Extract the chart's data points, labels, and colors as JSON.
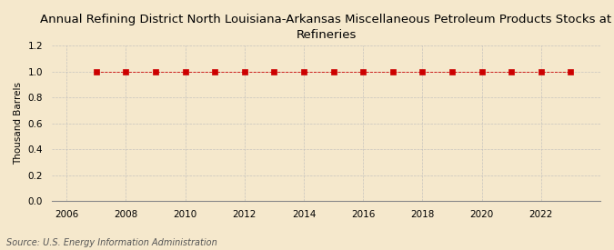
{
  "title": "Annual Refining District North Louisiana-Arkansas Miscellaneous Petroleum Products Stocks at\nRefineries",
  "ylabel": "Thousand Barrels",
  "source": "Source: U.S. Energy Information Administration",
  "background_color": "#f5e8cc",
  "plot_background_color": "#f5e8cc",
  "years": [
    2007,
    2008,
    2009,
    2010,
    2011,
    2012,
    2013,
    2014,
    2015,
    2016,
    2017,
    2018,
    2019,
    2020,
    2021,
    2022,
    2023
  ],
  "values": [
    1,
    1,
    1,
    1,
    1,
    1,
    1,
    1,
    1,
    1,
    1,
    1,
    1,
    1,
    1,
    1,
    1
  ],
  "marker_color": "#cc0000",
  "marker_size": 4,
  "marker_style": "s",
  "line_color": "#cc0000",
  "line_width": 0.6,
  "line_style": "--",
  "grid_color": "#bbbbbb",
  "grid_linestyle": "--",
  "xlim": [
    2005.5,
    2024
  ],
  "ylim": [
    0.0,
    1.2
  ],
  "xticks": [
    2006,
    2008,
    2010,
    2012,
    2014,
    2016,
    2018,
    2020,
    2022
  ],
  "yticks": [
    0.0,
    0.2,
    0.4,
    0.6,
    0.8,
    1.0,
    1.2
  ],
  "title_fontsize": 9.5,
  "axis_fontsize": 7.5,
  "tick_fontsize": 7.5,
  "source_fontsize": 7
}
